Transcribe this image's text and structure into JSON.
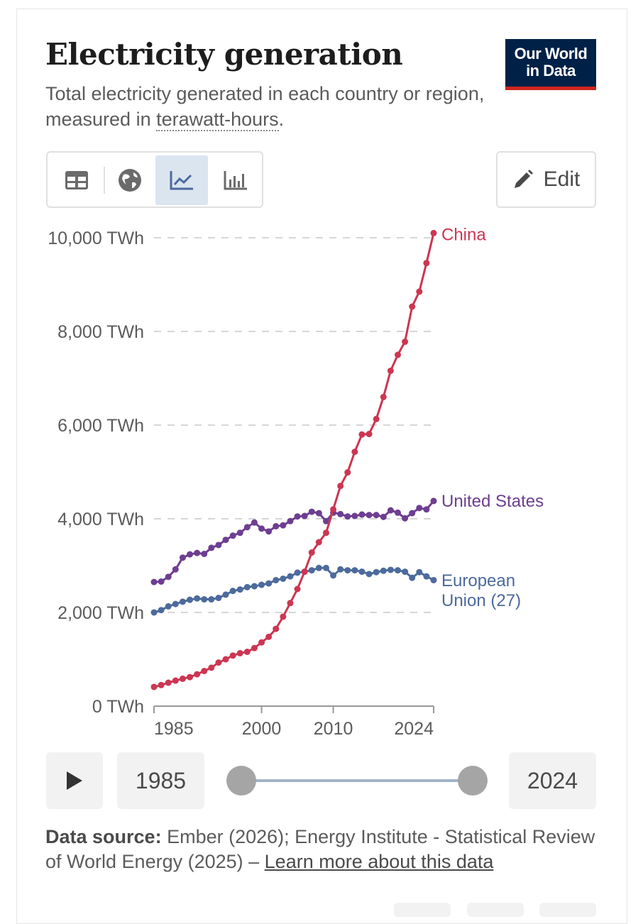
{
  "header": {
    "title": "Electricity generation",
    "subtitle_pre": "Total electricity generated in each country or region, measured in ",
    "subtitle_link": "terawatt-hours",
    "subtitle_post": ".",
    "logo_line1": "Our World",
    "logo_line2": "in Data"
  },
  "toolbar": {
    "tabs": [
      {
        "icon": "table-icon",
        "active": false
      },
      {
        "icon": "globe-icon",
        "active": false
      },
      {
        "icon": "line-chart-icon",
        "active": true
      },
      {
        "icon": "bar-chart-icon",
        "active": false
      }
    ],
    "edit_label": "Edit"
  },
  "timeline": {
    "start_year": "1985",
    "end_year": "2024"
  },
  "footer": {
    "source_label": "Data source:",
    "source_text": " Ember (2026); Energy Institute - Statistical Review of World Energy (2025) – ",
    "learn_more": "Learn more about this data"
  },
  "chart_data": {
    "type": "line",
    "x_ticks": [
      "1985",
      "2000",
      "2010",
      "2024"
    ],
    "y_ticks": [
      "0 TWh",
      "2,000 TWh",
      "4,000 TWh",
      "6,000 TWh",
      "8,000 TWh",
      "10,000 TWh"
    ],
    "y_tick_values": [
      0,
      2000,
      4000,
      6000,
      8000,
      10000
    ],
    "xlim": [
      1985,
      2024
    ],
    "ylim": [
      0,
      10000
    ],
    "grid": "horizontal-dashed",
    "legend": "line-end labels",
    "series": [
      {
        "name": "China",
        "color": "#cc3652",
        "start_year": 1985,
        "values": [
          410,
          450,
          500,
          545,
          585,
          620,
          680,
          750,
          820,
          930,
          1000,
          1080,
          1130,
          1160,
          1240,
          1360,
          1480,
          1650,
          1910,
          2200,
          2500,
          2870,
          3280,
          3500,
          3700,
          4200,
          4700,
          4990,
          5430,
          5800,
          5810,
          6130,
          6600,
          7160,
          7500,
          7780,
          8530,
          8850,
          9460,
          10100
        ]
      },
      {
        "name": "United States",
        "color": "#6d3e91",
        "start_year": 1985,
        "values": [
          2650,
          2660,
          2760,
          2920,
          3170,
          3240,
          3270,
          3250,
          3380,
          3440,
          3550,
          3640,
          3700,
          3820,
          3920,
          3790,
          3730,
          3840,
          3860,
          3950,
          4050,
          4060,
          4150,
          4120,
          3950,
          4130,
          4100,
          4050,
          4060,
          4090,
          4080,
          4080,
          4040,
          4180,
          4130,
          4010,
          4120,
          4230,
          4200,
          4380
        ]
      },
      {
        "name": "European Union (27)",
        "color": "#4c6a9c",
        "start_year": 1985,
        "values": [
          2000,
          2050,
          2130,
          2180,
          2230,
          2270,
          2300,
          2280,
          2280,
          2310,
          2380,
          2460,
          2490,
          2540,
          2560,
          2590,
          2620,
          2690,
          2720,
          2770,
          2850,
          2870,
          2900,
          2950,
          2950,
          2790,
          2920,
          2900,
          2900,
          2870,
          2820,
          2860,
          2890,
          2910,
          2900,
          2870,
          2740,
          2860,
          2770,
          2690
        ]
      }
    ]
  }
}
